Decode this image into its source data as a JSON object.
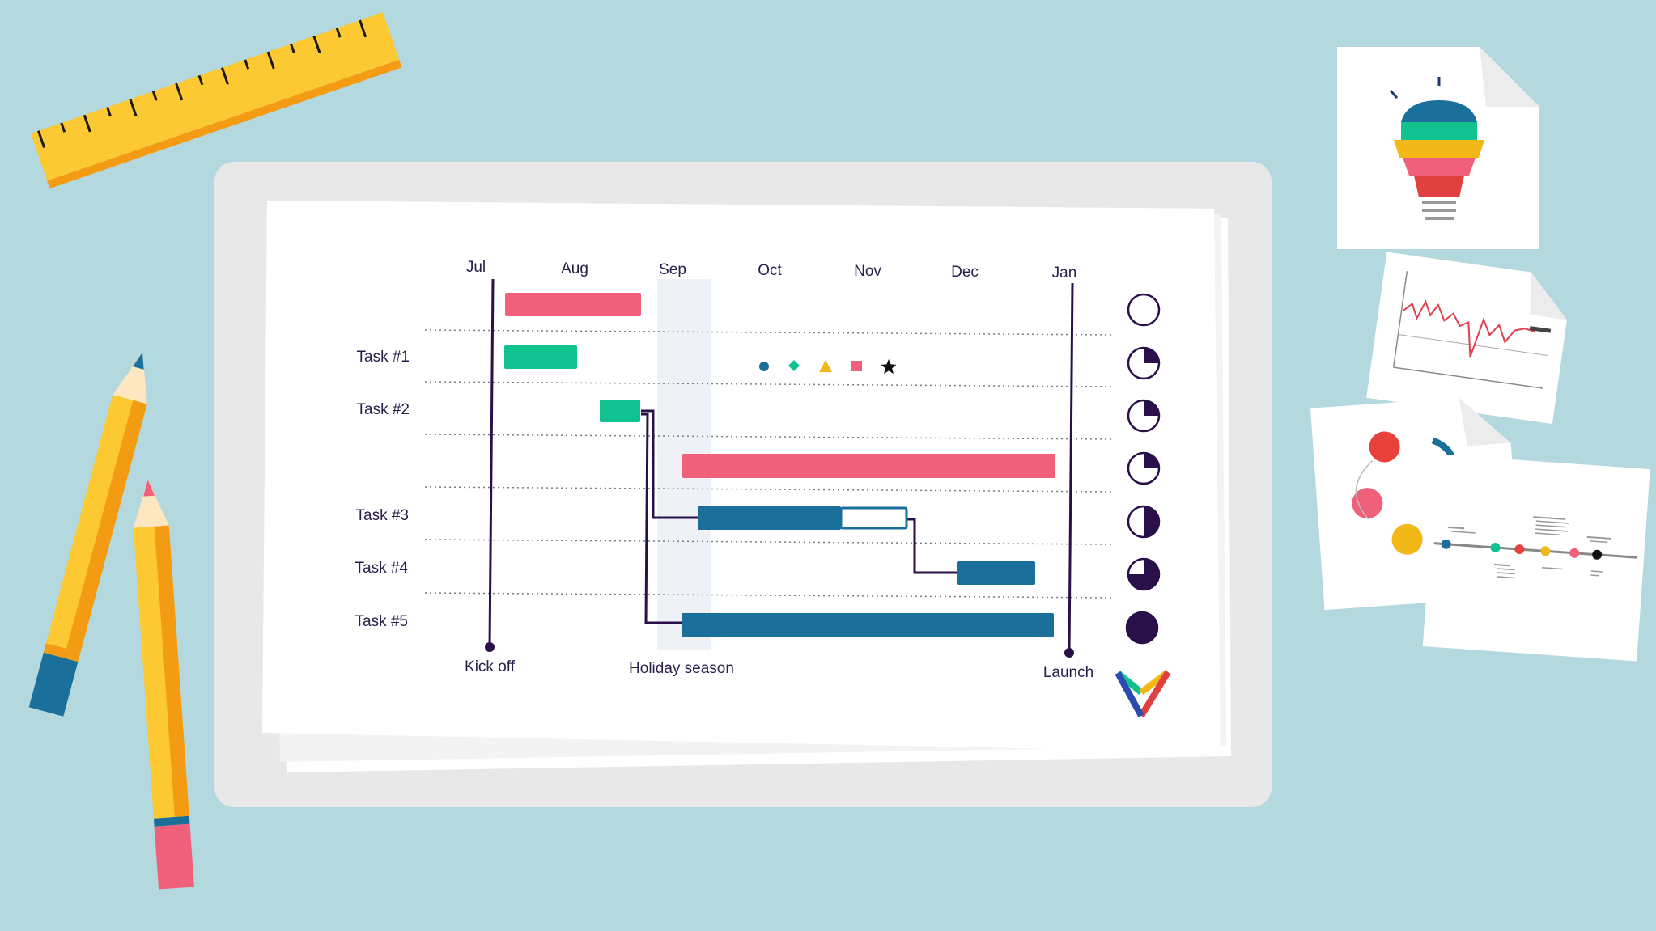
{
  "gantt": {
    "months": [
      "Jul",
      "Aug",
      "Sep",
      "Oct",
      "Nov",
      "Dec",
      "Jan"
    ],
    "tasks": [
      "Task #1",
      "Task #2",
      "Task #3",
      "Task #4",
      "Task #5"
    ],
    "milestones": {
      "kickoff": "Kick off",
      "holiday": "Holiday season",
      "launch": "Launch"
    },
    "progress_levels": [
      0,
      0.25,
      0.25,
      0.25,
      0.5,
      0.75,
      1
    ],
    "legend_shapes": [
      "circle-icon",
      "diamond-icon",
      "triangle-icon",
      "square-icon",
      "star-icon"
    ]
  },
  "colors": {
    "background": "#b3d8de",
    "pink": "#f0607b",
    "green": "#12c190",
    "blue": "#1a6f9b",
    "yellow": "#f2b817",
    "dark": "#2a1048",
    "tablet": "#e8e8e8"
  }
}
